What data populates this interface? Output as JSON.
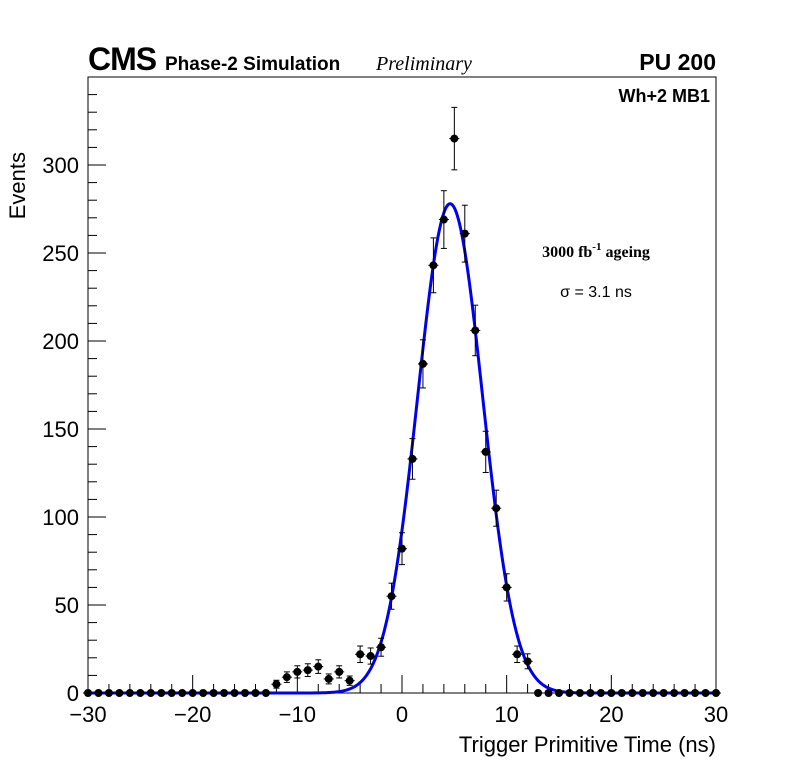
{
  "chart_data": {
    "type": "scatter",
    "header": {
      "experiment": "CMS",
      "simulation": "Phase-2 Simulation",
      "status": "Preliminary",
      "pileup": "PU 200"
    },
    "xlabel": "Trigger Primitive Time (ns)",
    "ylabel": "Events",
    "xlim": [
      -30,
      30
    ],
    "ylim": [
      0,
      350
    ],
    "xticks": [
      -30,
      -20,
      -10,
      0,
      10,
      20,
      30
    ],
    "yticks": [
      0,
      50,
      100,
      150,
      200,
      250,
      300
    ],
    "xtick_labels": [
      "−30",
      "−20",
      "−10",
      "0",
      "10",
      "20",
      "30"
    ],
    "ytick_labels": [
      "0",
      "50",
      "100",
      "150",
      "200",
      "250",
      "300"
    ],
    "annotations": {
      "station": "Wh+2 MB1",
      "ageing_main": "3000 fb",
      "ageing_sup": "-1",
      "ageing_rest": " ageing",
      "sigma": "σ = 3.1 ns"
    },
    "series": [
      {
        "name": "Simulated trigger primitives",
        "kind": "points_with_errors",
        "color": "#000000",
        "x": [
          -30,
          -29,
          -28,
          -27,
          -26,
          -25,
          -24,
          -23,
          -22,
          -21,
          -20,
          -19,
          -18,
          -17,
          -16,
          -15,
          -14,
          -13,
          -12,
          -11,
          -10,
          -9,
          -8,
          -7,
          -6,
          -5,
          -4,
          -3,
          -2,
          -1,
          0,
          1,
          2,
          3,
          4,
          5,
          6,
          7,
          8,
          9,
          10,
          11,
          12,
          13,
          14,
          15,
          16,
          17,
          18,
          19,
          20,
          21,
          22,
          23,
          24,
          25,
          26,
          27,
          28,
          29,
          30
        ],
        "y": [
          0,
          0,
          0,
          0,
          0,
          0,
          0,
          0,
          0,
          0,
          0,
          0,
          0,
          0,
          0,
          0,
          0,
          0,
          5,
          9,
          12,
          13,
          15,
          8,
          12,
          7,
          22,
          21,
          26,
          55,
          82,
          133,
          187,
          243,
          269,
          315,
          261,
          206,
          137,
          105,
          60,
          22,
          18,
          0,
          0,
          0,
          0,
          0,
          0,
          0,
          0,
          0,
          0,
          0,
          0,
          0,
          0,
          0,
          0,
          0,
          0
        ]
      },
      {
        "name": "Gaussian fit",
        "kind": "gaussian_curve",
        "color": "#0000ee",
        "amplitude": 278,
        "mean": 4.6,
        "sigma": 3.1,
        "range": [
          -30,
          30
        ]
      }
    ]
  }
}
